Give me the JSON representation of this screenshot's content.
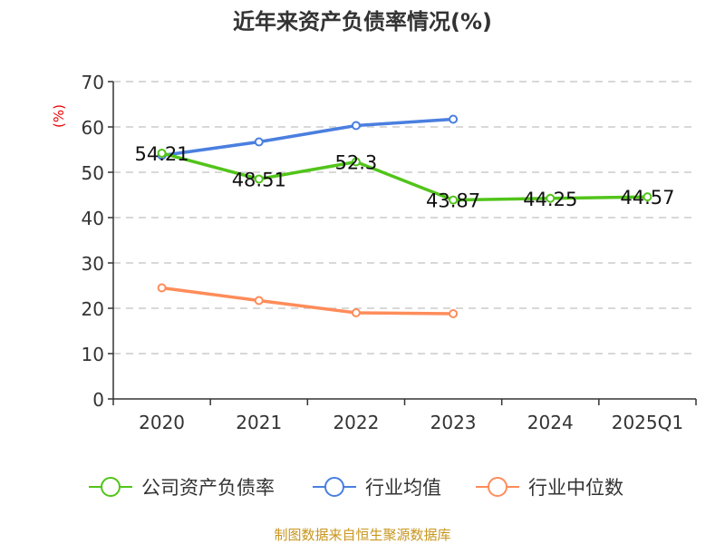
{
  "chart_data": {
    "type": "line",
    "title": "近年来资产负债率情况(%)",
    "ylabel": "(%)",
    "xlabel": "",
    "ylim": [
      0,
      70
    ],
    "yticks": [
      0,
      10,
      20,
      30,
      40,
      50,
      60,
      70
    ],
    "categories": [
      "2020",
      "2021",
      "2022",
      "2023",
      "2024",
      "2025Q1"
    ],
    "grid": true,
    "legend_position": "bottom",
    "series": [
      {
        "name": "公司资产负债率",
        "color": "#52c41a",
        "values": [
          54.21,
          48.51,
          52.3,
          43.87,
          44.25,
          44.57
        ],
        "labels": [
          "54.21",
          "48.51",
          "52.3",
          "43.87",
          "44.25",
          "44.57"
        ]
      },
      {
        "name": "行业均值",
        "color": "#4a7fe0",
        "values": [
          53.7,
          56.7,
          60.3,
          61.7,
          null,
          null
        ]
      },
      {
        "name": "行业中位数",
        "color": "#ff8c5a",
        "values": [
          24.5,
          21.7,
          19.0,
          18.8,
          null,
          null
        ]
      }
    ]
  },
  "footer": {
    "source": "制图数据来自恒生聚源数据库",
    "color": "#c8961e"
  }
}
